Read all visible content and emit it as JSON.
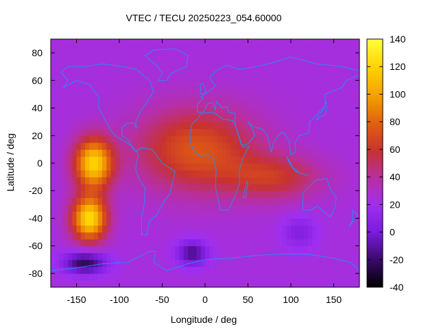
{
  "chart_data": {
    "type": "heatmap",
    "title": "VTEC / TECU 20250223_054.60000",
    "xlabel": "Longitude / deg",
    "ylabel": "Latitude / deg",
    "xlim": [
      -180,
      180
    ],
    "ylim": [
      -90,
      90
    ],
    "x_ticks": [
      -150,
      -100,
      -50,
      0,
      50,
      100,
      150
    ],
    "y_ticks": [
      -80,
      -60,
      -40,
      -20,
      0,
      20,
      40,
      60,
      80
    ],
    "colorbar": {
      "range": [
        -40,
        140
      ],
      "ticks": [
        -40,
        -20,
        0,
        20,
        40,
        60,
        80,
        100,
        120,
        140
      ],
      "palette": [
        "#000000",
        "#3a0a6a",
        "#7a1bdc",
        "#9f2ff0",
        "#b82fa0",
        "#c8322f",
        "#e06010",
        "#f3a000",
        "#ffd000",
        "#ffff40"
      ]
    },
    "background_value": 25,
    "features": [
      {
        "label": "Pacific equatorial peak",
        "lon": -130,
        "lat": 0,
        "value": 120
      },
      {
        "label": "Pacific southern peak",
        "lon": -135,
        "lat": -40,
        "value": 125
      },
      {
        "label": "Atlantic-Africa enhancement",
        "lon": -10,
        "lat": 10,
        "value": 75
      },
      {
        "label": "Indian Ocean band",
        "lon": 80,
        "lat": -10,
        "value": 60
      },
      {
        "label": "Antarctic low (Pacific)",
        "lon": -140,
        "lat": -72,
        "value": -25
      },
      {
        "label": "Antarctic low (Atlantic)",
        "lon": -15,
        "lat": -65,
        "value": -15
      },
      {
        "label": "Southern Indian Ocean low",
        "lon": 110,
        "lat": -50,
        "value": 5
      }
    ],
    "overlay": "coastlines"
  }
}
